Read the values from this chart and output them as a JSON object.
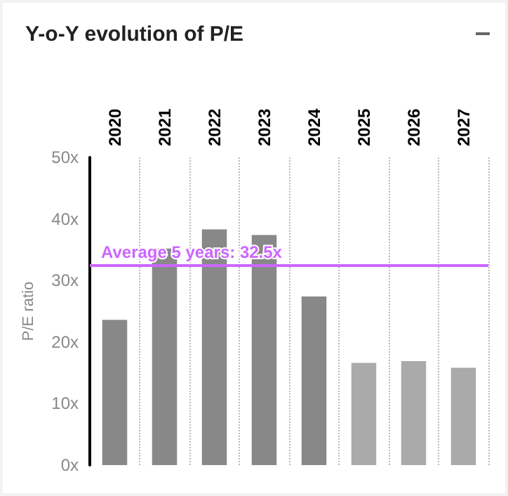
{
  "chart_data": {
    "type": "bar",
    "title": "Y-o-Y evolution of P/E",
    "ylabel": "P/E ratio",
    "categories": [
      "2020",
      "2021",
      "2022",
      "2023",
      "2024",
      "2025",
      "2026",
      "2027"
    ],
    "values": [
      23.6,
      35.2,
      38.3,
      37.4,
      27.4,
      16.6,
      16.9,
      15.8
    ],
    "colors": [
      "#888888",
      "#888888",
      "#888888",
      "#888888",
      "#888888",
      "#aaaaaa",
      "#aaaaaa",
      "#aaaaaa"
    ],
    "ylim": [
      0,
      50
    ],
    "yticks": [
      {
        "value": 0,
        "label": "0x"
      },
      {
        "value": 10,
        "label": "10x"
      },
      {
        "value": 20,
        "label": "20x"
      },
      {
        "value": 30,
        "label": "30x"
      },
      {
        "value": 40,
        "label": "40x"
      },
      {
        "value": 50,
        "label": "50x"
      }
    ],
    "ref_lines": [
      {
        "axis": "y",
        "value": 32.5,
        "label": "Average 5 years: 32.5x",
        "color": "#cc66ff"
      }
    ],
    "grid": "x"
  }
}
